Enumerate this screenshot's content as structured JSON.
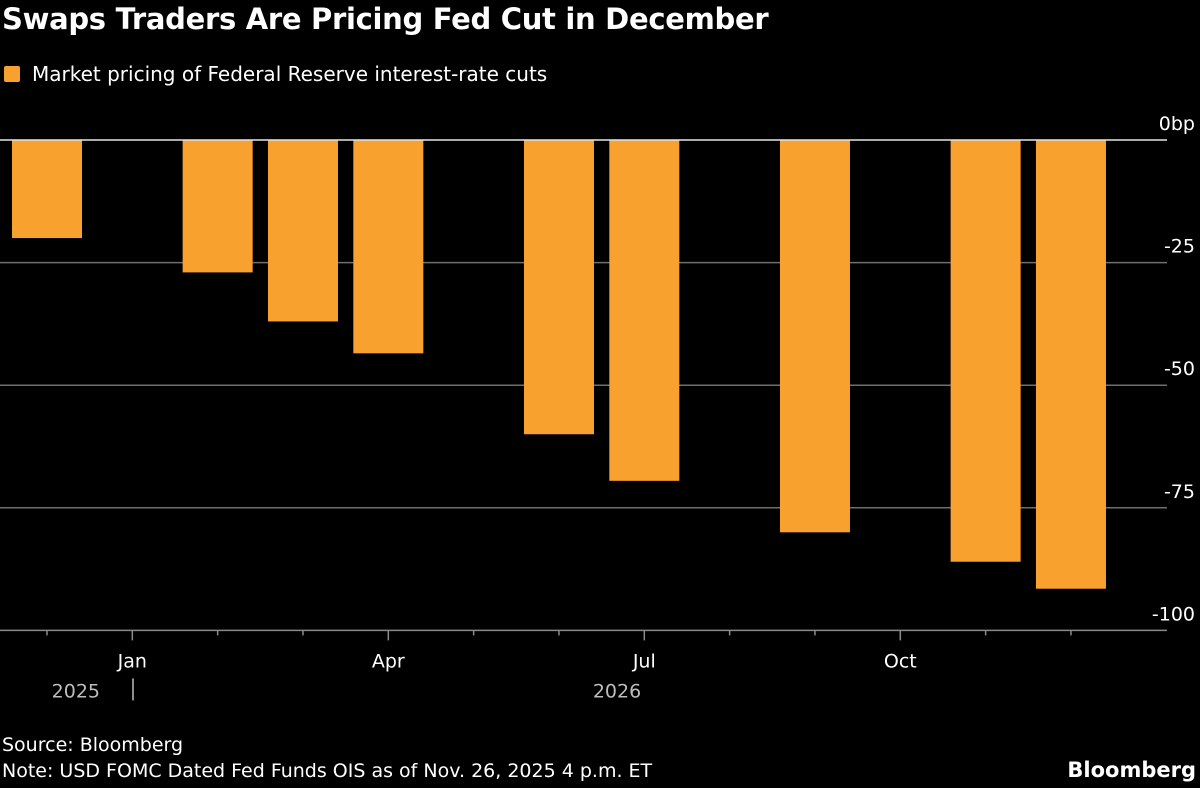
{
  "chart_data": {
    "type": "bar",
    "title": "Swaps Traders Are Pricing Fed Cut in December",
    "legend": [
      {
        "name": "Market pricing of Federal Reserve interest-rate cuts",
        "color": "#F9A12E"
      }
    ],
    "legend_placement": "top-left",
    "x": [
      "2025-12",
      "2026-02",
      "2026-03",
      "2026-04",
      "2026-06",
      "2026-07",
      "2026-09",
      "2026-11",
      "2026-12"
    ],
    "values": [
      -20,
      -27,
      -37,
      -43.5,
      -60,
      -69.5,
      -80,
      -86,
      -91.5
    ],
    "unit": "bp",
    "ylim": [
      -100,
      0
    ],
    "yticks": [
      0,
      -25,
      -50,
      -75,
      -100
    ],
    "ytick_labels": [
      "0bp",
      "-25",
      "-50",
      "-75",
      "-100"
    ],
    "y_axis_side": "right",
    "xtick_labels": [
      {
        "month": "2026-01",
        "label": "Jan"
      },
      {
        "month": "2026-04",
        "label": "Apr"
      },
      {
        "month": "2026-07",
        "label": "Jul"
      },
      {
        "month": "2026-10",
        "label": "Oct"
      }
    ],
    "year_labels": [
      {
        "label": "2025"
      },
      {
        "label": "2026"
      }
    ],
    "grid": true,
    "bar_color": "#F9A12E",
    "background": "#000000"
  },
  "footer": {
    "source": "Source: Bloomberg",
    "note": "Note: USD FOMC Dated Fed Funds OIS as of Nov. 26, 2025 4 p.m. ET",
    "logo": "Bloomberg"
  }
}
